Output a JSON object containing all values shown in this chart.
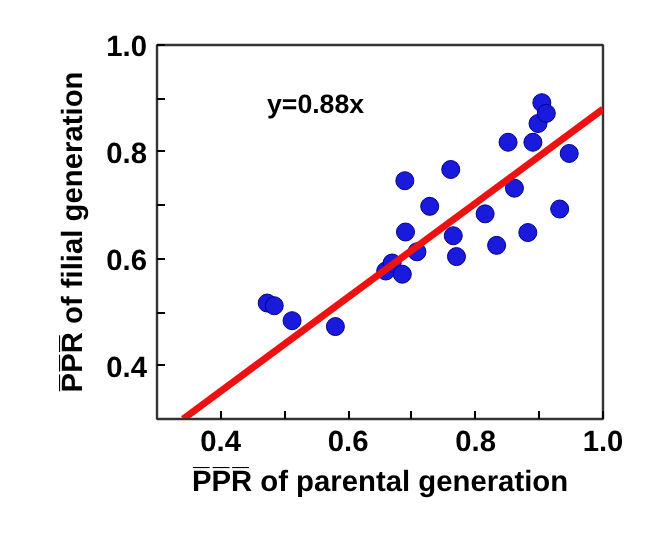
{
  "chart_data": {
    "type": "scatter",
    "xlabel": "P̅P̅R̅ of parental generation",
    "ylabel": "P̅P̅R̅ of filial generation",
    "annotations": [
      "y=0.88x"
    ],
    "xlim": [
      0.3,
      1.0
    ],
    "ylim": [
      0.3,
      1.0
    ],
    "xticks": [
      0.4,
      {
        "value": 0.5,
        "label": null
      },
      0.6,
      {
        "value": 0.7,
        "label": null
      },
      0.8,
      {
        "value": 0.9,
        "label": null
      },
      {
        "value": 1.0,
        "label": "1.0"
      }
    ],
    "yticks": [
      0.4,
      {
        "value": 0.5,
        "label": null
      },
      0.6,
      {
        "value": 0.7,
        "label": null
      },
      0.8,
      {
        "value": 0.9,
        "label": null
      },
      {
        "value": 1.0,
        "label": "1.0"
      }
    ],
    "grid": false,
    "marker": "circle",
    "series": [
      {
        "color": "#1a1adc",
        "x": [
          0.473,
          0.484,
          0.512,
          0.58,
          0.659,
          0.669,
          0.685,
          0.69,
          0.689,
          0.708,
          0.728,
          0.761,
          0.765,
          0.77,
          0.815,
          0.833,
          0.851,
          0.861,
          0.882,
          0.89,
          0.898,
          0.904,
          0.911,
          0.932,
          0.947
        ],
        "values": [
          0.517,
          0.512,
          0.484,
          0.473,
          0.577,
          0.592,
          0.571,
          0.65,
          0.746,
          0.613,
          0.698,
          0.767,
          0.643,
          0.604,
          0.684,
          0.625,
          0.818,
          0.732,
          0.649,
          0.818,
          0.853,
          0.892,
          0.872,
          0.693,
          0.797
        ]
      },
      {
        "type": "line",
        "color": "#ee1111",
        "line_style": "solid",
        "marker": "none",
        "x": [
          0.341,
          1.0
        ],
        "values": [
          0.3,
          0.88
        ]
      }
    ]
  }
}
